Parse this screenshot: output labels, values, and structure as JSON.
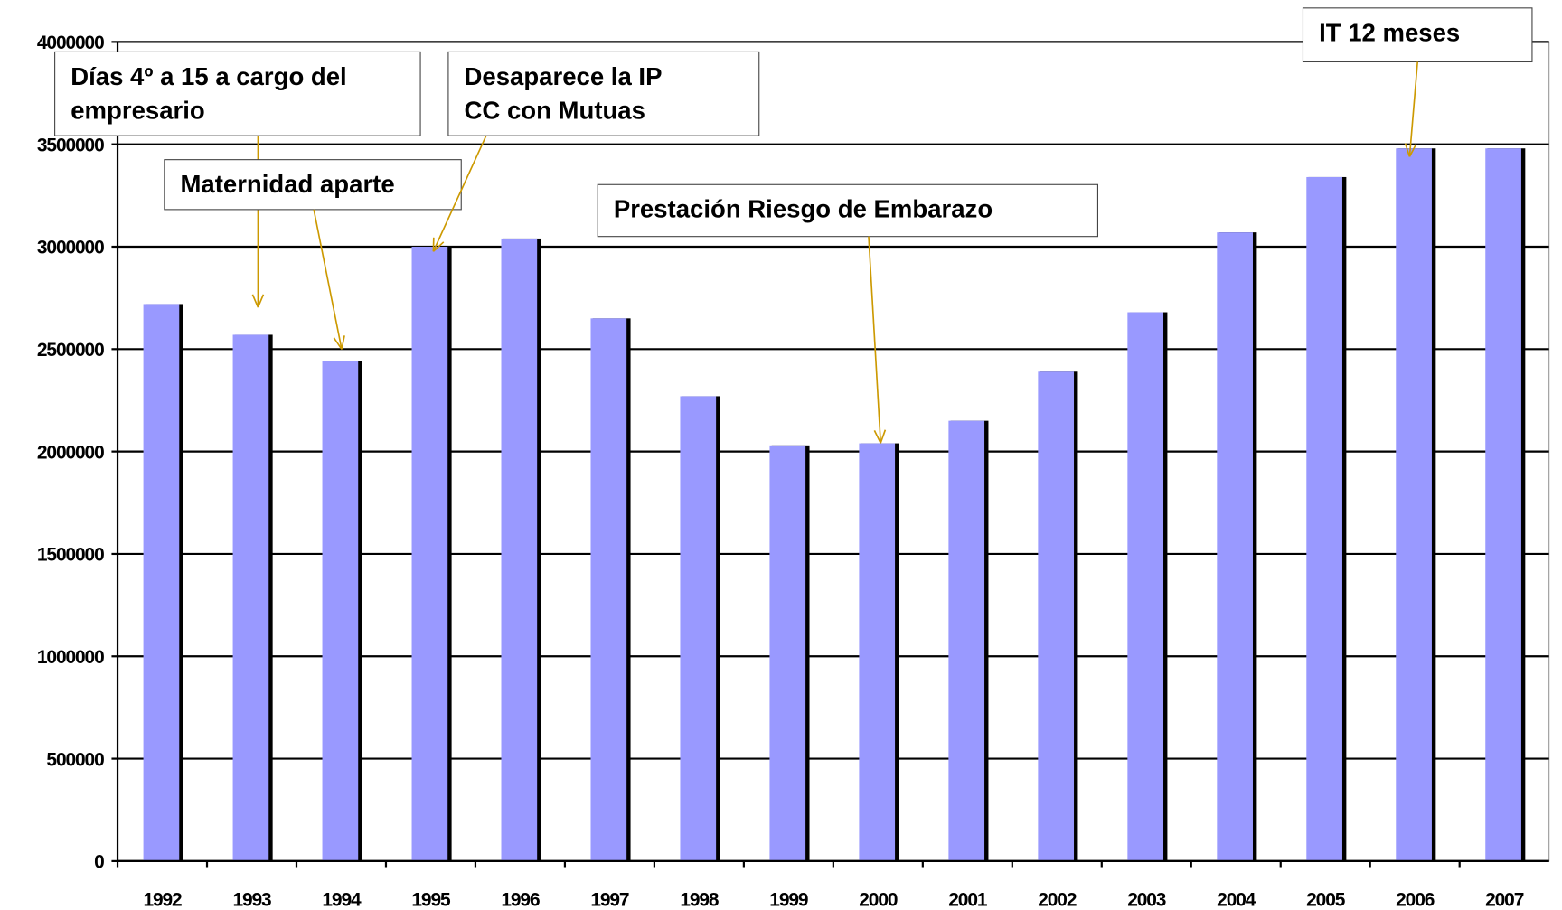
{
  "chart_data": {
    "type": "bar",
    "categories": [
      "1992",
      "1993",
      "1994",
      "1995",
      "1996",
      "1997",
      "1998",
      "1999",
      "2000",
      "2001",
      "2002",
      "2003",
      "2004",
      "2005",
      "2006",
      "2007"
    ],
    "values": [
      2720000,
      2570000,
      2440000,
      3000000,
      3040000,
      2650000,
      2270000,
      2030000,
      2040000,
      2150000,
      2390000,
      2680000,
      3070000,
      3340000,
      3480000,
      3480000
    ],
    "color": "#9999ff",
    "ylim": [
      0,
      4000000
    ],
    "yticks": [
      0,
      500000,
      1000000,
      1500000,
      2000000,
      2500000,
      3000000,
      3500000,
      4000000
    ],
    "grid": true,
    "annotations": [
      {
        "lines": [
          "Días 4º a 15 a cargo del",
          "empresario"
        ]
      },
      {
        "lines": [
          "Maternidad aparte"
        ]
      },
      {
        "lines": [
          "Desaparece la IP",
          "CC con Mutuas"
        ]
      },
      {
        "lines": [
          "Prestación Riesgo de Embarazo"
        ]
      },
      {
        "lines": [
          "IT 12 meses"
        ]
      }
    ]
  }
}
